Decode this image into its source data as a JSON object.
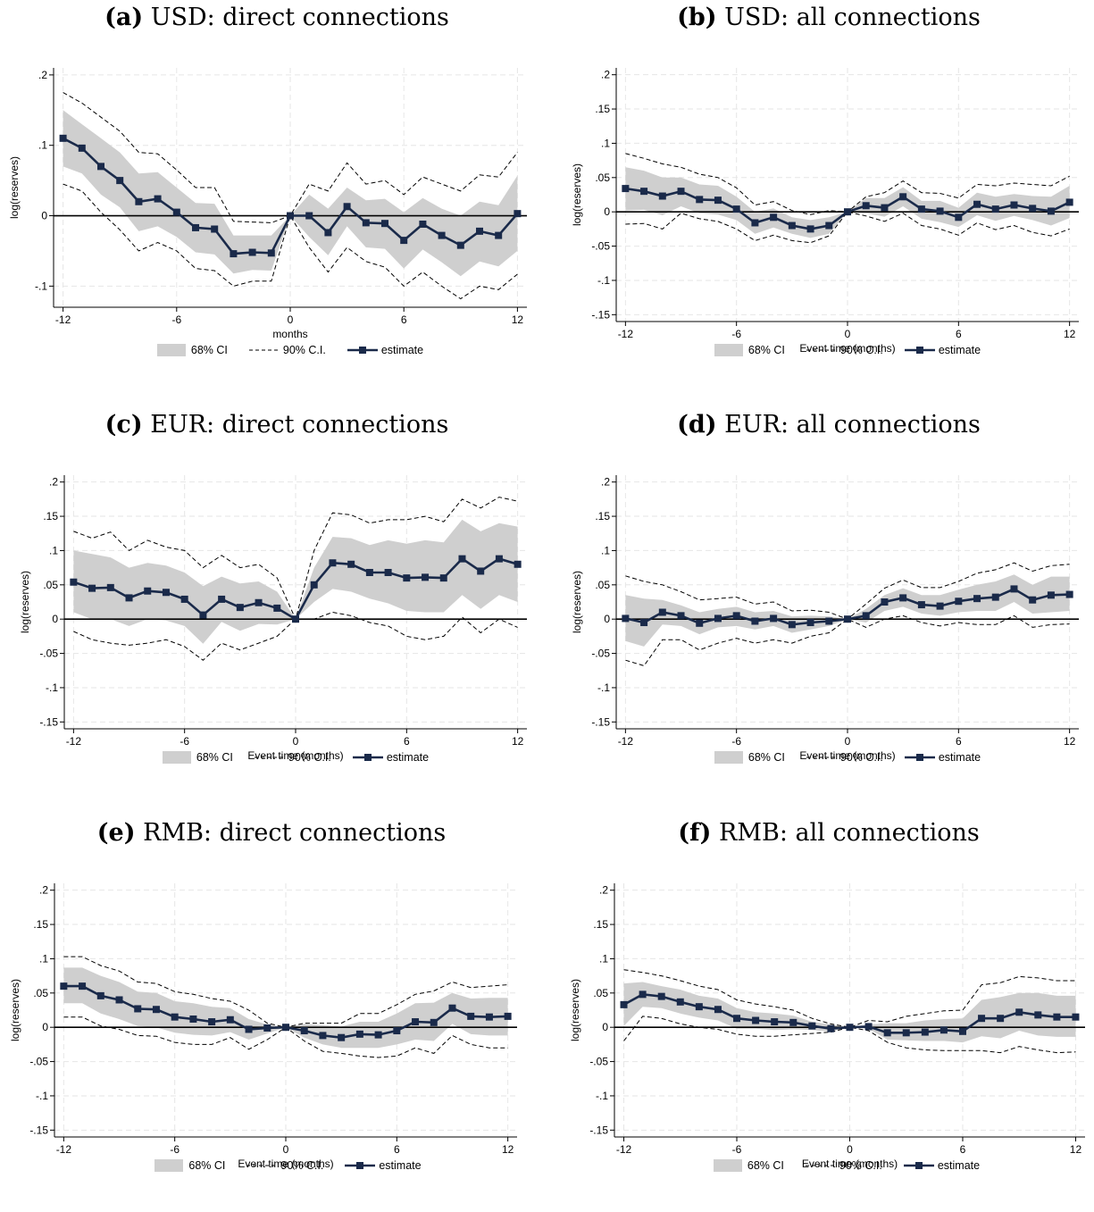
{
  "legend": {
    "ci68": "68% CI",
    "ci90": "90% C.I.",
    "estimate": "estimate"
  },
  "colors": {
    "band": "#cfcfcf",
    "estimate": "#1a2a4a",
    "ci90": "#000000",
    "grid": "#e6e6e6"
  },
  "charts": [
    {
      "letter": "(a)",
      "title": "USD: direct connections",
      "xlabel": "months",
      "ylabel": "log(reserves)",
      "xticks": [
        -12,
        -6,
        0,
        6,
        12
      ],
      "yticks": [
        0.2,
        0.1,
        0,
        -0.1
      ],
      "ytick_labels": [
        ".2",
        ".1",
        "0",
        "-.1"
      ],
      "ylim": [
        -0.13,
        0.21
      ]
    },
    {
      "letter": "(b)",
      "title": "USD: all connections",
      "xlabel": "Event time (months)",
      "ylabel": "log(reserves)",
      "xticks": [
        -12,
        -6,
        0,
        6,
        12
      ],
      "yticks": [
        0.2,
        0.15,
        0.1,
        0.05,
        0,
        -0.05,
        -0.1,
        -0.15
      ],
      "ytick_labels": [
        ".2",
        ".15",
        ".1",
        ".05",
        "0",
        "-.05",
        "-.1",
        "-.15"
      ],
      "ylim": [
        -0.16,
        0.21
      ]
    },
    {
      "letter": "(c)",
      "title": "EUR: direct connections",
      "xlabel": "Event time (months)",
      "ylabel": "log(reserves)",
      "xticks": [
        -12,
        -6,
        0,
        6,
        12
      ],
      "yticks": [
        0.2,
        0.15,
        0.1,
        0.05,
        0,
        -0.05,
        -0.1,
        -0.15
      ],
      "ytick_labels": [
        ".2",
        ".15",
        ".1",
        ".05",
        "0",
        "-.05",
        "-.1",
        "-.15"
      ],
      "ylim": [
        -0.16,
        0.21
      ]
    },
    {
      "letter": "(d)",
      "title": "EUR: all connections",
      "xlabel": "Event time (months)",
      "ylabel": "log(reserves)",
      "xticks": [
        -12,
        -6,
        0,
        6,
        12
      ],
      "yticks": [
        0.2,
        0.15,
        0.1,
        0.05,
        0,
        -0.05,
        -0.1,
        -0.15
      ],
      "ytick_labels": [
        ".2",
        ".15",
        ".1",
        ".05",
        "0",
        "-.05",
        "-.1",
        "-.15"
      ],
      "ylim": [
        -0.16,
        0.21
      ]
    },
    {
      "letter": "(e)",
      "title": "RMB: direct connections",
      "xlabel": "Event time (months)",
      "ylabel": "log(reserves)",
      "xticks": [
        -12,
        -6,
        0,
        6,
        12
      ],
      "yticks": [
        0.2,
        0.15,
        0.1,
        0.05,
        0,
        -0.05,
        -0.1,
        -0.15
      ],
      "ytick_labels": [
        ".2",
        ".15",
        ".1",
        ".05",
        "0",
        "-.05",
        "-.1",
        "-.15"
      ],
      "ylim": [
        -0.16,
        0.21
      ]
    },
    {
      "letter": "(f)",
      "title": "RMB: all connections",
      "xlabel": "Event time (months)",
      "ylabel": "log(reserves)",
      "xticks": [
        -12,
        -6,
        0,
        6,
        12
      ],
      "yticks": [
        0.2,
        0.15,
        0.1,
        0.05,
        0,
        -0.05,
        -0.1,
        -0.15
      ],
      "ytick_labels": [
        ".2",
        ".15",
        ".1",
        ".05",
        "0",
        "-.05",
        "-.1",
        "-.15"
      ],
      "ylim": [
        -0.16,
        0.21
      ]
    }
  ],
  "chart_data": [
    {
      "type": "line",
      "title": "USD: direct connections",
      "xlabel": "months",
      "ylabel": "log(reserves)",
      "x": [
        -12,
        -11,
        -10,
        -9,
        -8,
        -7,
        -6,
        -5,
        -4,
        -3,
        -2,
        -1,
        0,
        1,
        2,
        3,
        4,
        5,
        6,
        7,
        8,
        9,
        10,
        11,
        12
      ],
      "estimate": [
        0.11,
        0.096,
        0.07,
        0.05,
        0.02,
        0.024,
        0.005,
        -0.017,
        -0.019,
        -0.054,
        -0.052,
        -0.053,
        0,
        0,
        -0.024,
        0.013,
        -0.01,
        -0.011,
        -0.035,
        -0.012,
        -0.028,
        -0.042,
        -0.022,
        -0.028,
        0.003
      ],
      "ci68_upper": [
        0.15,
        0.13,
        0.11,
        0.09,
        0.06,
        0.062,
        0.04,
        0.018,
        0.017,
        -0.028,
        -0.028,
        -0.028,
        0,
        0.03,
        0.01,
        0.04,
        0.022,
        0.024,
        0.005,
        0.025,
        0.01,
        0,
        0.02,
        0.015,
        0.057
      ],
      "ci68_lower": [
        0.07,
        0.06,
        0.03,
        0.012,
        -0.022,
        -0.015,
        -0.03,
        -0.052,
        -0.055,
        -0.082,
        -0.077,
        -0.078,
        0,
        -0.03,
        -0.056,
        -0.015,
        -0.045,
        -0.047,
        -0.075,
        -0.048,
        -0.066,
        -0.086,
        -0.065,
        -0.072,
        -0.05
      ],
      "ci90_upper": [
        0.175,
        0.16,
        0.14,
        0.12,
        0.09,
        0.088,
        0.065,
        0.04,
        0.04,
        -0.008,
        -0.009,
        -0.01,
        0,
        0.045,
        0.035,
        0.075,
        0.045,
        0.05,
        0.03,
        0.055,
        0.045,
        0.035,
        0.058,
        0.055,
        0.09
      ],
      "ci90_lower": [
        0.045,
        0.035,
        0.005,
        -0.02,
        -0.05,
        -0.038,
        -0.05,
        -0.075,
        -0.078,
        -0.1,
        -0.093,
        -0.093,
        0,
        -0.045,
        -0.08,
        -0.045,
        -0.065,
        -0.073,
        -0.1,
        -0.08,
        -0.1,
        -0.118,
        -0.1,
        -0.105,
        -0.083
      ],
      "ylim": [
        -0.13,
        0.21
      ]
    },
    {
      "type": "line",
      "title": "USD: all connections",
      "xlabel": "Event time (months)",
      "ylabel": "log(reserves)",
      "x": [
        -12,
        -11,
        -10,
        -9,
        -8,
        -7,
        -6,
        -5,
        -4,
        -3,
        -2,
        -1,
        0,
        1,
        2,
        3,
        4,
        5,
        6,
        7,
        8,
        9,
        10,
        11,
        12
      ],
      "estimate": [
        0.034,
        0.03,
        0.023,
        0.03,
        0.018,
        0.017,
        0.004,
        -0.016,
        -0.008,
        -0.02,
        -0.025,
        -0.02,
        0,
        0.009,
        0.006,
        0.022,
        0.004,
        0.001,
        -0.008,
        0.011,
        0.004,
        0.01,
        0.005,
        0.001,
        0.014
      ],
      "ci68_upper": [
        0.065,
        0.06,
        0.05,
        0.05,
        0.04,
        0.038,
        0.022,
        0,
        0.005,
        -0.008,
        -0.012,
        -0.008,
        0,
        0.02,
        0.02,
        0.036,
        0.016,
        0.016,
        0.006,
        0.028,
        0.022,
        0.026,
        0.023,
        0.022,
        0.038
      ],
      "ci68_lower": [
        0.002,
        0.003,
        -0.005,
        0.008,
        -0.002,
        -0.004,
        -0.012,
        -0.032,
        -0.023,
        -0.032,
        -0.038,
        -0.032,
        0,
        -0.002,
        -0.007,
        0.008,
        -0.01,
        -0.015,
        -0.022,
        -0.005,
        -0.013,
        -0.006,
        -0.012,
        -0.02,
        -0.009
      ],
      "ci90_upper": [
        0.085,
        0.078,
        0.07,
        0.065,
        0.055,
        0.05,
        0.035,
        0.01,
        0.015,
        0.002,
        -0.004,
        0.002,
        0,
        0.022,
        0.028,
        0.045,
        0.028,
        0.027,
        0.02,
        0.04,
        0.038,
        0.042,
        0.04,
        0.038,
        0.052
      ],
      "ci90_lower": [
        -0.018,
        -0.017,
        -0.025,
        -0.002,
        -0.01,
        -0.014,
        -0.025,
        -0.042,
        -0.034,
        -0.042,
        -0.045,
        -0.035,
        0,
        -0.006,
        -0.014,
        -0.002,
        -0.02,
        -0.025,
        -0.034,
        -0.016,
        -0.026,
        -0.02,
        -0.03,
        -0.035,
        -0.025
      ],
      "ylim": [
        -0.16,
        0.21
      ]
    },
    {
      "type": "line",
      "title": "EUR: direct connections",
      "xlabel": "Event time (months)",
      "ylabel": "log(reserves)",
      "x": [
        -12,
        -11,
        -10,
        -9,
        -8,
        -7,
        -6,
        -5,
        -4,
        -3,
        -2,
        -1,
        0,
        1,
        2,
        3,
        4,
        5,
        6,
        7,
        8,
        9,
        10,
        11,
        12
      ],
      "estimate": [
        0.054,
        0.045,
        0.046,
        0.031,
        0.041,
        0.039,
        0.029,
        0.006,
        0.029,
        0.017,
        0.024,
        0.016,
        0,
        0.05,
        0.082,
        0.08,
        0.068,
        0.068,
        0.06,
        0.061,
        0.06,
        0.088,
        0.07,
        0.088,
        0.08
      ],
      "ci68_upper": [
        0.1,
        0.095,
        0.09,
        0.075,
        0.082,
        0.078,
        0.068,
        0.048,
        0.062,
        0.052,
        0.055,
        0.04,
        0,
        0.075,
        0.12,
        0.118,
        0.108,
        0.115,
        0.11,
        0.115,
        0.112,
        0.145,
        0.128,
        0.14,
        0.135
      ],
      "ci68_lower": [
        0.01,
        0,
        0,
        -0.01,
        0,
        -0.002,
        -0.01,
        -0.036,
        -0.004,
        -0.017,
        -0.007,
        -0.008,
        0,
        0.025,
        0.044,
        0.04,
        0.03,
        0.023,
        0.012,
        0.01,
        0.01,
        0.035,
        0.015,
        0.035,
        0.025
      ],
      "ci90_upper": [
        0.128,
        0.118,
        0.127,
        0.1,
        0.115,
        0.105,
        0.1,
        0.075,
        0.093,
        0.075,
        0.08,
        0.06,
        0,
        0.1,
        0.155,
        0.152,
        0.14,
        0.145,
        0.145,
        0.15,
        0.142,
        0.175,
        0.162,
        0.178,
        0.172
      ],
      "ci90_lower": [
        -0.018,
        -0.03,
        -0.035,
        -0.038,
        -0.035,
        -0.03,
        -0.04,
        -0.06,
        -0.035,
        -0.045,
        -0.035,
        -0.025,
        0,
        0,
        0.01,
        0.005,
        -0.005,
        -0.01,
        -0.025,
        -0.03,
        -0.025,
        0.003,
        -0.02,
        0,
        -0.012
      ],
      "ylim": [
        -0.16,
        0.21
      ]
    },
    {
      "type": "line",
      "title": "EUR: all connections",
      "xlabel": "Event time (months)",
      "ylabel": "log(reserves)",
      "x": [
        -12,
        -11,
        -10,
        -9,
        -8,
        -7,
        -6,
        -5,
        -4,
        -3,
        -2,
        -1,
        0,
        1,
        2,
        3,
        4,
        5,
        6,
        7,
        8,
        9,
        10,
        11,
        12
      ],
      "estimate": [
        0.001,
        -0.005,
        0.01,
        0.005,
        -0.006,
        0.001,
        0.005,
        -0.003,
        0.001,
        -0.008,
        -0.005,
        -0.003,
        0,
        0.005,
        0.025,
        0.031,
        0.021,
        0.019,
        0.026,
        0.03,
        0.032,
        0.044,
        0.028,
        0.035,
        0.036
      ],
      "ci68_upper": [
        0.035,
        0.03,
        0.028,
        0.02,
        0.01,
        0.015,
        0.018,
        0.01,
        0.012,
        0.004,
        0.005,
        0.004,
        0,
        0.015,
        0.035,
        0.045,
        0.035,
        0.035,
        0.043,
        0.05,
        0.055,
        0.065,
        0.05,
        0.062,
        0.062
      ],
      "ci68_lower": [
        -0.032,
        -0.04,
        -0.008,
        -0.01,
        -0.022,
        -0.012,
        -0.01,
        -0.015,
        -0.01,
        -0.02,
        -0.015,
        -0.01,
        0,
        -0.005,
        0.012,
        0.018,
        0.008,
        0.005,
        0.01,
        0.012,
        0.012,
        0.025,
        0.008,
        0.01,
        0.012
      ],
      "ci90_upper": [
        0.063,
        0.055,
        0.05,
        0.04,
        0.028,
        0.03,
        0.032,
        0.022,
        0.025,
        0.012,
        0.013,
        0.01,
        0,
        0.022,
        0.045,
        0.057,
        0.046,
        0.046,
        0.055,
        0.067,
        0.072,
        0.082,
        0.07,
        0.078,
        0.08
      ],
      "ci90_lower": [
        -0.06,
        -0.068,
        -0.03,
        -0.03,
        -0.045,
        -0.035,
        -0.028,
        -0.035,
        -0.03,
        -0.035,
        -0.025,
        -0.02,
        0,
        -0.012,
        0,
        0.005,
        -0.005,
        -0.01,
        -0.005,
        -0.008,
        -0.008,
        0.005,
        -0.012,
        -0.008,
        -0.007
      ],
      "ylim": [
        -0.16,
        0.21
      ]
    },
    {
      "type": "line",
      "title": "RMB: direct connections",
      "xlabel": "Event time (months)",
      "ylabel": "log(reserves)",
      "x": [
        -12,
        -11,
        -10,
        -9,
        -8,
        -7,
        -6,
        -5,
        -4,
        -3,
        -2,
        -1,
        0,
        1,
        2,
        3,
        4,
        5,
        6,
        7,
        8,
        9,
        10,
        11,
        12
      ],
      "estimate": [
        0.06,
        0.06,
        0.046,
        0.04,
        0.027,
        0.026,
        0.015,
        0.012,
        0.008,
        0.011,
        -0.003,
        -0.001,
        0,
        -0.005,
        -0.012,
        -0.015,
        -0.01,
        -0.011,
        -0.005,
        0.008,
        0.007,
        0.028,
        0.016,
        0.015,
        0.016
      ],
      "ci68_upper": [
        0.087,
        0.087,
        0.075,
        0.066,
        0.052,
        0.05,
        0.038,
        0.035,
        0.03,
        0.028,
        0.012,
        0.004,
        0,
        0.005,
        0.003,
        0.001,
        0.008,
        0.008,
        0.02,
        0.035,
        0.036,
        0.05,
        0.042,
        0.043,
        0.043
      ],
      "ci68_lower": [
        0.035,
        0.035,
        0.02,
        0.012,
        0.002,
        0,
        -0.008,
        -0.011,
        -0.012,
        -0.007,
        -0.018,
        -0.009,
        0,
        -0.015,
        -0.025,
        -0.03,
        -0.03,
        -0.03,
        -0.025,
        -0.018,
        -0.02,
        0.005,
        -0.01,
        -0.012,
        -0.012
      ],
      "ci90_upper": [
        0.103,
        0.103,
        0.09,
        0.082,
        0.066,
        0.064,
        0.052,
        0.048,
        0.042,
        0.038,
        0.025,
        0.006,
        0,
        0.006,
        0.006,
        0.006,
        0.02,
        0.02,
        0.033,
        0.048,
        0.053,
        0.066,
        0.058,
        0.06,
        0.062
      ],
      "ci90_lower": [
        0.015,
        0.015,
        0.002,
        -0.003,
        -0.012,
        -0.013,
        -0.022,
        -0.025,
        -0.025,
        -0.015,
        -0.032,
        -0.018,
        0,
        -0.02,
        -0.035,
        -0.038,
        -0.042,
        -0.044,
        -0.042,
        -0.03,
        -0.038,
        -0.012,
        -0.025,
        -0.03,
        -0.03
      ],
      "ylim": [
        -0.16,
        0.21
      ]
    },
    {
      "type": "line",
      "title": "RMB: all connections",
      "xlabel": "Event time (months)",
      "ylabel": "log(reserves)",
      "x": [
        -12,
        -11,
        -10,
        -9,
        -8,
        -7,
        -6,
        -5,
        -4,
        -3,
        -2,
        -1,
        0,
        1,
        2,
        3,
        4,
        5,
        6,
        7,
        8,
        9,
        10,
        11,
        12
      ],
      "estimate": [
        0.033,
        0.048,
        0.045,
        0.037,
        0.03,
        0.026,
        0.013,
        0.01,
        0.008,
        0.007,
        0.002,
        -0.002,
        0,
        0.001,
        -0.008,
        -0.008,
        -0.007,
        -0.004,
        -0.006,
        0.013,
        0.013,
        0.022,
        0.018,
        0.015,
        0.015
      ],
      "ci68_upper": [
        0.064,
        0.066,
        0.06,
        0.055,
        0.046,
        0.042,
        0.028,
        0.022,
        0.02,
        0.017,
        0.008,
        0.004,
        0,
        0.004,
        0.006,
        0.006,
        0.01,
        0.012,
        0.013,
        0.04,
        0.044,
        0.05,
        0.05,
        0.046,
        0.046
      ],
      "ci68_lower": [
        0.002,
        0.03,
        0.028,
        0.02,
        0.014,
        0.01,
        -0.002,
        -0.002,
        -0.004,
        -0.003,
        -0.004,
        -0.006,
        0,
        -0.002,
        -0.018,
        -0.019,
        -0.02,
        -0.02,
        -0.022,
        -0.013,
        -0.016,
        -0.005,
        -0.012,
        -0.014,
        -0.014
      ],
      "ci90_upper": [
        0.084,
        0.08,
        0.075,
        0.068,
        0.06,
        0.055,
        0.04,
        0.034,
        0.03,
        0.025,
        0.013,
        0.005,
        0,
        0.01,
        0.008,
        0.016,
        0.02,
        0.024,
        0.025,
        0.062,
        0.065,
        0.074,
        0.072,
        0.068,
        0.068
      ],
      "ci90_lower": [
        -0.02,
        0.016,
        0.013,
        0.005,
        0,
        -0.003,
        -0.01,
        -0.013,
        -0.013,
        -0.011,
        -0.009,
        -0.007,
        0,
        -0.005,
        -0.022,
        -0.03,
        -0.033,
        -0.034,
        -0.034,
        -0.034,
        -0.037,
        -0.028,
        -0.033,
        -0.037,
        -0.036
      ],
      "ylim": [
        -0.16,
        0.21
      ]
    }
  ]
}
